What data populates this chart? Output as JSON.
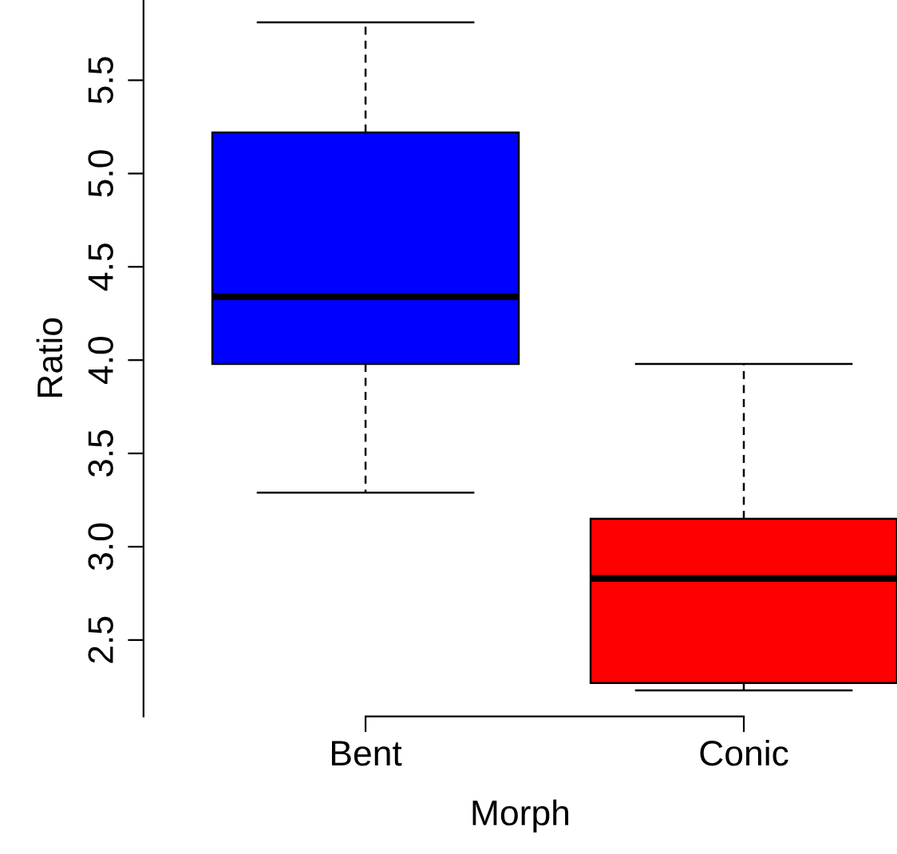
{
  "chart_data": {
    "type": "box",
    "xlabel": "Morph",
    "ylabel": "Ratio",
    "categories": [
      "Bent",
      "Conic"
    ],
    "series": [
      {
        "colors": [
          "#0000ff",
          "#ff0000"
        ],
        "boxes": [
          {
            "low": 3.29,
            "q1": 3.98,
            "median": 4.34,
            "q3": 5.22,
            "high": 5.81
          },
          {
            "low": 2.23,
            "q1": 2.27,
            "median": 2.83,
            "q3": 3.15,
            "high": 3.98
          }
        ]
      }
    ],
    "ylim": [
      2.09,
      5.93
    ],
    "yticks": [
      2.5,
      {
        "value": 3,
        "label": "3.0"
      },
      3.5,
      {
        "value": 4,
        "label": "4.0"
      },
      4.5,
      {
        "value": 5,
        "label": "5.0"
      },
      5.5
    ],
    "grid": false,
    "legend": false
  }
}
